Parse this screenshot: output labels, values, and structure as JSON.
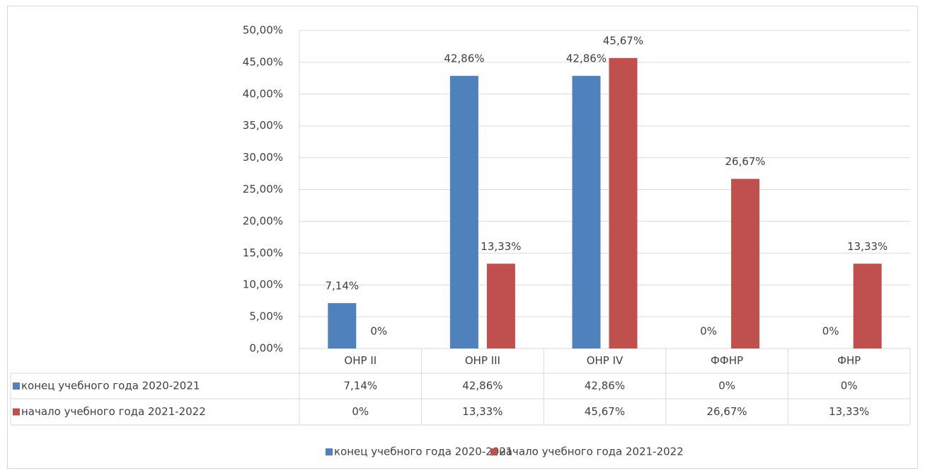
{
  "chart_data": {
    "type": "bar",
    "categories": [
      "ОНР II",
      "ОНР III",
      "ОНР IV",
      "ФФНР",
      "ФНР"
    ],
    "series": [
      {
        "name": "конец учебного года 2020-2021",
        "color": "#4f81bd",
        "values": [
          7.14,
          42.86,
          42.86,
          0,
          0
        ],
        "value_labels": [
          "7,14%",
          "42,86%",
          "42,86%",
          "0%",
          "0%"
        ]
      },
      {
        "name": "начало учебного года 2021-2022",
        "color": "#c0504d",
        "values": [
          0,
          13.33,
          45.67,
          26.67,
          13.33
        ],
        "value_labels": [
          "0%",
          "13,33%",
          "45,67%",
          "26,67%",
          "13,33%"
        ]
      }
    ],
    "ylim": [
      0,
      50
    ],
    "yticks": [
      {
        "value": 0,
        "label": "0,00%"
      },
      {
        "value": 5,
        "label": "5,00%"
      },
      {
        "value": 10,
        "label": "10,00%"
      },
      {
        "value": 15,
        "label": "15,00%"
      },
      {
        "value": 20,
        "label": "20,00%"
      },
      {
        "value": 25,
        "label": "25,00%"
      },
      {
        "value": 30,
        "label": "30,00%"
      },
      {
        "value": 35,
        "label": "35,00%"
      },
      {
        "value": 40,
        "label": "40,00%"
      },
      {
        "value": 45,
        "label": "45,00%"
      },
      {
        "value": 50,
        "label": "50,00%"
      }
    ],
    "grid": true,
    "legend": "bottom",
    "data_table": true
  }
}
